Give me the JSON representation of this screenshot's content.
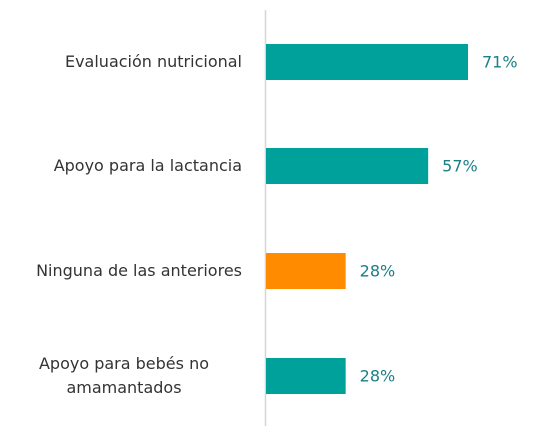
{
  "chart_data": {
    "type": "bar",
    "orientation": "horizontal",
    "categories": [
      "Evaluación nutricional",
      "Apoyo para la lactancia",
      "Ninguna de las anteriores",
      "Apoyo para bebés no amamantados"
    ],
    "values": [
      71,
      57,
      28,
      28
    ],
    "value_labels": [
      "71%",
      "57%",
      "28%",
      "28%"
    ],
    "colors": [
      "#00a19a",
      "#00a19a",
      "#ff8c00",
      "#00a19a"
    ]
  }
}
